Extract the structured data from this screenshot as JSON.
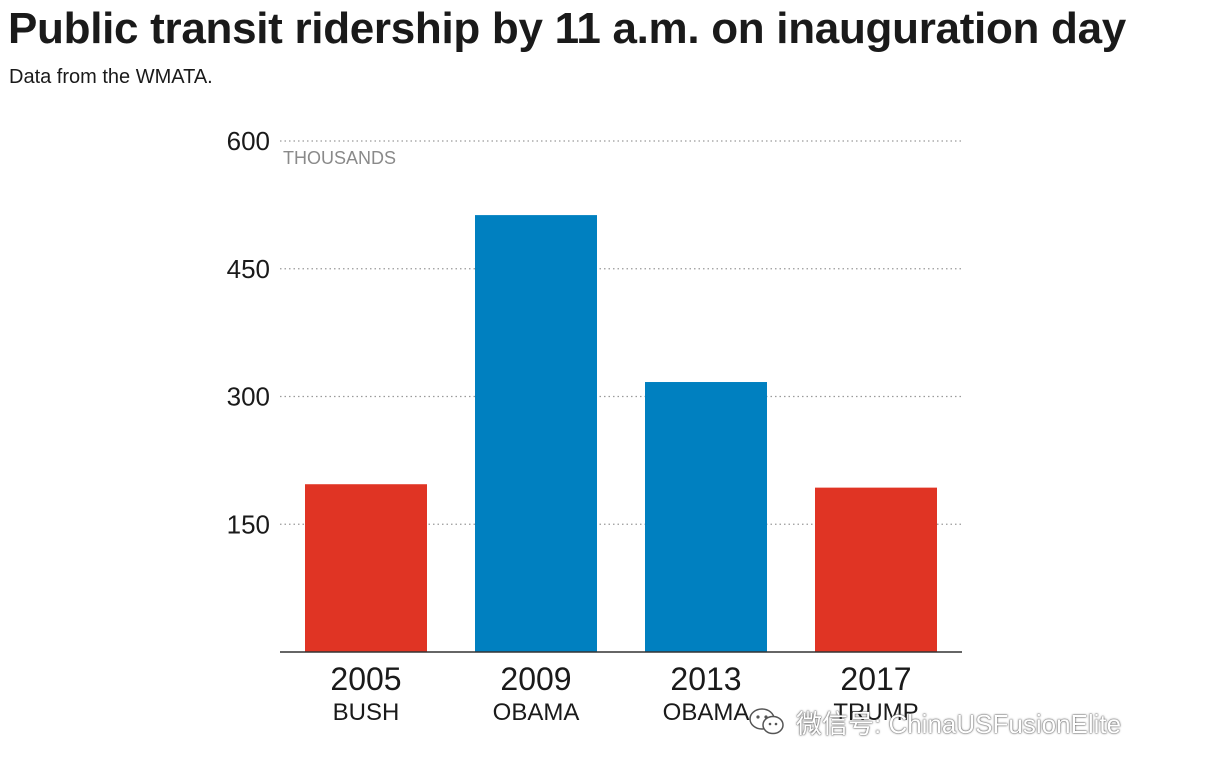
{
  "title": "Public transit ridership by 11 a.m. on inauguration day",
  "subtitle": "Data from the WMATA.",
  "watermark": {
    "text": "微信号: ChinaUSFusionElite",
    "icon": "wechat-logo-icon"
  },
  "colors": {
    "republican": "#e03424",
    "democrat": "#0080c0",
    "grid": "#9a9a9a",
    "axis": "#333333"
  },
  "chart_data": {
    "type": "bar",
    "title": "Public transit ridership by 11 a.m. on inauguration day",
    "subtitle": "Data from the WMATA.",
    "ylabel": "THOUSANDS",
    "categories": [
      "2005",
      "2009",
      "2013",
      "2017"
    ],
    "category_sublabels": [
      "BUSH",
      "OBAMA",
      "OBAMA",
      "TRUMP"
    ],
    "values": [
      197,
      513,
      317,
      193
    ],
    "bar_colors": [
      "#e03424",
      "#0080c0",
      "#0080c0",
      "#e03424"
    ],
    "ylim": [
      0,
      600
    ],
    "yticks": [
      150,
      300,
      450,
      600
    ],
    "grid": "dotted horizontal",
    "legend": "none"
  }
}
